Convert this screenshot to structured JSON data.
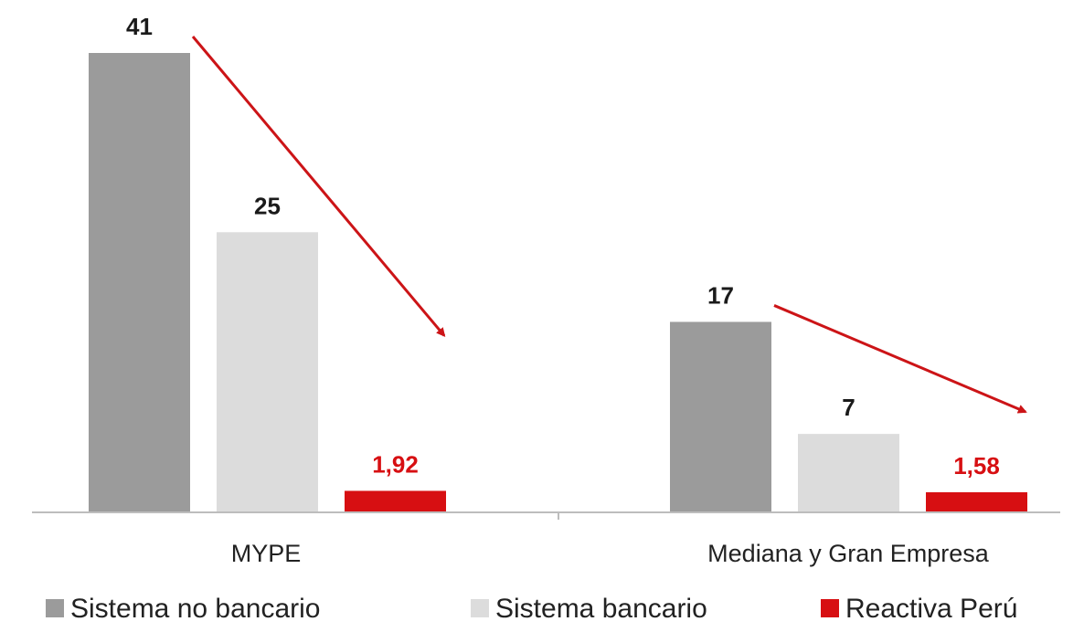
{
  "chart_data": {
    "type": "bar",
    "categories": [
      "MYPE",
      "Mediana y Gran Empresa"
    ],
    "series": [
      {
        "name": "Sistema no bancario",
        "values": [
          41,
          17
        ],
        "labels": [
          "41",
          "17"
        ],
        "color": "#9b9b9b"
      },
      {
        "name": "Sistema bancario",
        "values": [
          25,
          7
        ],
        "labels": [
          "25",
          "7"
        ],
        "color": "#dcdcdc"
      },
      {
        "name": "Reactiva Perú",
        "values": [
          1.92,
          1.58
        ],
        "labels": [
          "1,92",
          "1,58"
        ],
        "color": "#d70f12"
      }
    ],
    "label_colors": [
      "#1a1a1a",
      "#1a1a1a",
      "#d70f12"
    ],
    "arrow_color": "#cc1417",
    "ylim": [
      0,
      41
    ],
    "grid": false,
    "legend": "bottom"
  }
}
